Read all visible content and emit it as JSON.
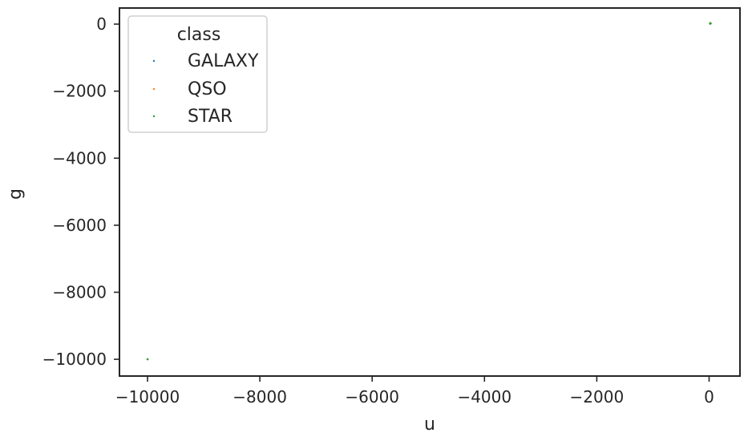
{
  "chart_data": {
    "type": "scatter",
    "title": "",
    "xlabel": "u",
    "ylabel": "g",
    "xlim": [
      -10500,
      550
    ],
    "ylim": [
      -10500,
      480
    ],
    "xticks": [
      -10000,
      -8000,
      -6000,
      -4000,
      -2000,
      0
    ],
    "yticks": [
      -10000,
      -8000,
      -6000,
      -4000,
      -2000,
      0
    ],
    "xtick_labels": [
      "−10000",
      "−8000",
      "−6000",
      "−4000",
      "−2000",
      "0"
    ],
    "ytick_labels": [
      "−10000",
      "−8000",
      "−6000",
      "−4000",
      "−2000",
      "0"
    ],
    "grid": false,
    "legend": {
      "title": "class",
      "placement": "top-left",
      "entries": [
        "GALAXY",
        "QSO",
        "STAR"
      ]
    },
    "series": [
      {
        "name": "GALAXY",
        "color": "#1f77b4",
        "points": [
          [
            19.5,
            18.2
          ],
          [
            22.0,
            20.5
          ],
          [
            24.0,
            22.8
          ],
          [
            25.5,
            23.6
          ],
          [
            20.8,
            19.4
          ],
          [
            23.1,
            21.7
          ]
        ]
      },
      {
        "name": "QSO",
        "color": "#ff7f0e",
        "points": [
          [
            19.0,
            18.8
          ],
          [
            21.5,
            21.0
          ],
          [
            23.5,
            22.6
          ],
          [
            24.8,
            23.9
          ]
        ]
      },
      {
        "name": "STAR",
        "color": "#2ca02c",
        "points": [
          [
            -9999,
            -9999
          ],
          [
            18.6,
            17.3
          ],
          [
            21.0,
            19.8
          ],
          [
            22.7,
            21.1
          ],
          [
            24.4,
            22.5
          ]
        ]
      }
    ]
  }
}
